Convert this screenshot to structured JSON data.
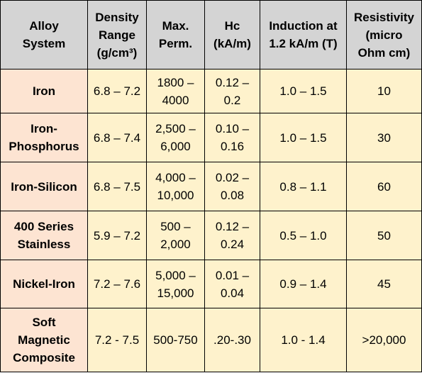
{
  "table": {
    "headers": [
      [
        "Alloy",
        "System"
      ],
      [
        "Density",
        "Range",
        "(g/cm³)"
      ],
      [
        "Max.",
        "Perm."
      ],
      [
        "Hc",
        "(kA/m)"
      ],
      [
        "Induction at",
        "1.2 kA/m (T)"
      ],
      [
        "Resistivity",
        "(micro",
        "Ohm cm)"
      ]
    ],
    "rows": [
      {
        "alloy": [
          "Iron"
        ],
        "density": [
          "6.8 – 7.2"
        ],
        "perm": [
          "1800 –",
          "4000"
        ],
        "hc": [
          "0.12 –",
          "0.2"
        ],
        "induction": [
          "1.0 – 1.5"
        ],
        "resistivity": [
          "10"
        ]
      },
      {
        "alloy": [
          "Iron-",
          "Phosphorus"
        ],
        "density": [
          "6.8 – 7.4"
        ],
        "perm": [
          "2,500 –",
          "6,000"
        ],
        "hc": [
          "0.10 –",
          "0.16"
        ],
        "induction": [
          "1.0 – 1.5"
        ],
        "resistivity": [
          "30"
        ]
      },
      {
        "alloy": [
          "Iron-Silicon"
        ],
        "density": [
          "6.8 – 7.5"
        ],
        "perm": [
          "4,000 –",
          "10,000"
        ],
        "hc": [
          "0.02 –",
          "0.08"
        ],
        "induction": [
          "0.8 – 1.1"
        ],
        "resistivity": [
          "60"
        ]
      },
      {
        "alloy": [
          "400 Series",
          "Stainless"
        ],
        "density": [
          "5.9 – 7.2"
        ],
        "perm": [
          "500 –",
          "2,000"
        ],
        "hc": [
          "0.12 –",
          "0.24"
        ],
        "induction": [
          "0.5 – 1.0"
        ],
        "resistivity": [
          "50"
        ]
      },
      {
        "alloy": [
          "Nickel-Iron"
        ],
        "density": [
          "7.2 – 7.6"
        ],
        "perm": [
          "5,000 –",
          "15,000"
        ],
        "hc": [
          "0.01 –",
          "0.04"
        ],
        "induction": [
          "0.9 – 1.4"
        ],
        "resistivity": [
          "45"
        ]
      },
      {
        "alloy": [
          "Soft",
          "Magnetic",
          "Composite"
        ],
        "density": [
          "7.2 - 7.5"
        ],
        "perm": [
          "500-750"
        ],
        "hc": [
          ".20-.30"
        ],
        "induction": [
          "1.0 - 1.4"
        ],
        "resistivity": [
          ">20,000"
        ]
      }
    ]
  }
}
